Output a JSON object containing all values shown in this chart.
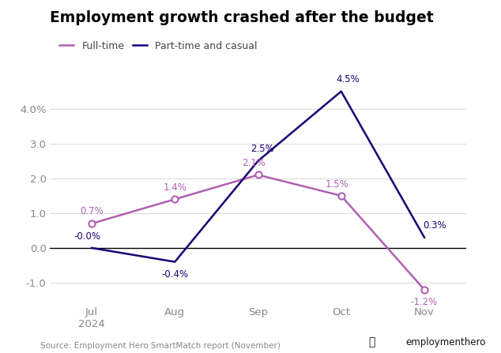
{
  "title": "Employment growth crashed after the budget",
  "categories": [
    "Jul\n2024",
    "Aug",
    "Sep",
    "Oct",
    "Nov"
  ],
  "fulltime": [
    0.7,
    1.4,
    2.1,
    1.5,
    -1.2
  ],
  "parttime": [
    0.0,
    -0.4,
    2.5,
    4.5,
    0.3
  ],
  "fulltime_labels": [
    "0.7%",
    "1.4%",
    "2.1%",
    "1.5%",
    "-1.2%"
  ],
  "parttime_labels": [
    "-0.0%",
    "-0.4%",
    "2.5%",
    "4.5%",
    "0.3%"
  ],
  "fulltime_color": "#b060b0",
  "parttime_color": "#1a0075",
  "fulltime_legend": "Full-time",
  "parttime_legend": "Part-time and casual",
  "source_text": "Source: Employment Hero SmartMatch report (November)",
  "yticks": [
    -1.0,
    0.0,
    1.0,
    2.0,
    3.0,
    4.0
  ],
  "ylim": [
    -1.6,
    5.3
  ],
  "background_color": "#ffffff",
  "grid_color": "#dddddd",
  "tick_color": "#888888",
  "logo_text": "employmenthero",
  "logo_color": "#111111"
}
